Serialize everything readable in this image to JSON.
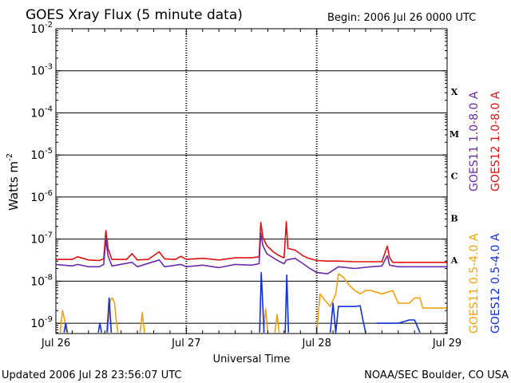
{
  "chart_data": {
    "type": "line",
    "title": "GOES Xray Flux (5 minute data)",
    "begin_label": "Begin:  2006 Jul 26 0000 UTC",
    "xlabel": "Universal Time",
    "ylabel_main": "Watts m",
    "ylabel_sup": "-2",
    "y_scale": "log",
    "ylim": [
      5.7e-10,
      0.01
    ],
    "y_ticks": [
      {
        "base": "10",
        "exp": "-2",
        "value": 0.01
      },
      {
        "base": "10",
        "exp": "-3",
        "value": 0.001
      },
      {
        "base": "10",
        "exp": "-4",
        "value": 0.0001
      },
      {
        "base": "10",
        "exp": "-5",
        "value": 1e-05
      },
      {
        "base": "10",
        "exp": "-6",
        "value": 1e-06
      },
      {
        "base": "10",
        "exp": "-7",
        "value": 1e-07
      },
      {
        "base": "10",
        "exp": "-8",
        "value": 1e-08
      },
      {
        "base": "10",
        "exp": "-9",
        "value": 1e-09
      }
    ],
    "x_range_hours": [
      0,
      72
    ],
    "x_ticks": [
      {
        "label": "Jul 26",
        "hour": 0
      },
      {
        "label": "Jul 27",
        "hour": 24
      },
      {
        "label": "Jul 28",
        "hour": 48
      },
      {
        "label": "Jul 29",
        "hour": 72
      }
    ],
    "flare_classes": [
      {
        "label": "X",
        "value": 0.0003162
      },
      {
        "label": "M",
        "value": 3.162e-05
      },
      {
        "label": "C",
        "value": 3.162e-06
      },
      {
        "label": "B",
        "value": 3.162e-07
      },
      {
        "label": "A",
        "value": 3.162e-08
      }
    ],
    "right_legend": {
      "upper": [
        {
          "label": "GOES11 1.0-8.0 A",
          "color": "#6a2ca8"
        },
        {
          "label": "GOES12 1.0-8.0 A",
          "color": "#e01010"
        }
      ],
      "lower": [
        {
          "label": "GOES11 0.5-4.0 A",
          "color": "#f0a010"
        },
        {
          "label": "GOES12 0.5-4.0 A",
          "color": "#1030e0"
        }
      ]
    },
    "series": [
      {
        "key": "g12long",
        "color": "#e01010",
        "points": [
          [
            0,
            3.3e-08
          ],
          [
            3,
            3.3e-08
          ],
          [
            4,
            3.8e-08
          ],
          [
            6,
            3.2e-08
          ],
          [
            8,
            3.1e-08
          ],
          [
            8.8,
            3.4e-08
          ],
          [
            9.2,
            1.6e-07
          ],
          [
            9.6,
            6e-08
          ],
          [
            10.3,
            3.3e-08
          ],
          [
            13,
            3.3e-08
          ],
          [
            14,
            4.5e-08
          ],
          [
            15,
            3.2e-08
          ],
          [
            17,
            3.3e-08
          ],
          [
            19,
            5e-08
          ],
          [
            20,
            3.4e-08
          ],
          [
            22,
            3.3e-08
          ],
          [
            23,
            3.9e-08
          ],
          [
            24,
            3.3e-08
          ],
          [
            27,
            3.5e-08
          ],
          [
            30,
            3.2e-08
          ],
          [
            33,
            3.6e-08
          ],
          [
            36,
            3.6e-08
          ],
          [
            37.4,
            3.8e-08
          ],
          [
            37.7,
            2.5e-07
          ],
          [
            38.1,
            1.1e-07
          ],
          [
            38.8,
            7e-08
          ],
          [
            40,
            5e-08
          ],
          [
            41,
            4.1e-08
          ],
          [
            42,
            3.6e-08
          ],
          [
            42.4,
            2.6e-07
          ],
          [
            42.7,
            6e-08
          ],
          [
            44,
            5.5e-08
          ],
          [
            45.5,
            4e-08
          ],
          [
            46.5,
            3.5e-08
          ],
          [
            48,
            3.1e-08
          ],
          [
            50,
            3e-08
          ],
          [
            52,
            3e-08
          ],
          [
            55,
            2.9e-08
          ],
          [
            58,
            2.9e-08
          ],
          [
            60,
            2.9e-08
          ],
          [
            61,
            6.8e-08
          ],
          [
            61.4,
            3.6e-08
          ],
          [
            62,
            2.8e-08
          ],
          [
            66,
            2.8e-08
          ],
          [
            69,
            2.8e-08
          ],
          [
            72,
            2.8e-08
          ]
        ]
      },
      {
        "key": "g11long",
        "color": "#6a2ca8",
        "points": [
          [
            0,
            2.5e-08
          ],
          [
            3,
            2.3e-08
          ],
          [
            4,
            2.5e-08
          ],
          [
            6,
            2.2e-08
          ],
          [
            8,
            2.2e-08
          ],
          [
            8.8,
            2.5e-08
          ],
          [
            9.2,
            1e-07
          ],
          [
            9.6,
            4e-08
          ],
          [
            10.3,
            2.3e-08
          ],
          [
            14,
            2.8e-08
          ],
          [
            15,
            2.2e-08
          ],
          [
            19,
            3.2e-08
          ],
          [
            20,
            2.2e-08
          ],
          [
            23,
            2.5e-08
          ],
          [
            24,
            2.2e-08
          ],
          [
            27,
            2.4e-08
          ],
          [
            30,
            2.1e-08
          ],
          [
            33,
            2.5e-08
          ],
          [
            36,
            2.4e-08
          ],
          [
            37.4,
            2.6e-08
          ],
          [
            37.7,
            1.4e-07
          ],
          [
            38.1,
            7e-08
          ],
          [
            38.8,
            4.5e-08
          ],
          [
            40,
            3.6e-08
          ],
          [
            41,
            3e-08
          ],
          [
            42,
            2.6e-08
          ],
          [
            42.4,
            3.2e-08
          ],
          [
            44,
            3.5e-08
          ],
          [
            45.5,
            2.6e-08
          ],
          [
            46.5,
            2.1e-08
          ],
          [
            48,
            1.6e-08
          ],
          [
            50,
            1.5e-08
          ],
          [
            52,
            2.2e-08
          ],
          [
            55,
            2e-08
          ],
          [
            58,
            2.2e-08
          ],
          [
            60,
            2.3e-08
          ],
          [
            61,
            4e-08
          ],
          [
            61.4,
            2.4e-08
          ],
          [
            63,
            2.2e-08
          ],
          [
            66,
            2.2e-08
          ],
          [
            69,
            2.2e-08
          ],
          [
            72,
            2.2e-08
          ]
        ]
      },
      {
        "key": "g11short",
        "color": "#f0a010",
        "points": [
          [
            0.8,
            6e-10
          ],
          [
            1.2,
            2e-09
          ],
          [
            1.6,
            1.2e-09
          ],
          [
            2,
            6e-10
          ],
          [
            null,
            null
          ],
          [
            9.5,
            6e-10
          ],
          [
            10,
            3.6e-09
          ],
          [
            10.4,
            4e-09
          ],
          [
            10.8,
            3e-09
          ],
          [
            11.1,
            1.2e-09
          ],
          [
            11.4,
            6e-10
          ],
          [
            null,
            null
          ],
          [
            15.5,
            6e-10
          ],
          [
            15.9,
            1.8e-09
          ],
          [
            16.3,
            6e-10
          ],
          [
            null,
            null
          ],
          [
            38.2,
            6e-10
          ],
          [
            38.6,
            2.2e-09
          ],
          [
            39,
            6e-10
          ],
          [
            null,
            null
          ],
          [
            40.3,
            6e-10
          ],
          [
            40.7,
            1.6e-09
          ],
          [
            41.1,
            6e-10
          ],
          [
            null,
            null
          ],
          [
            48,
            6e-10
          ],
          [
            48.6,
            5e-09
          ],
          [
            49.5,
            3.5e-09
          ],
          [
            50.5,
            2.5e-09
          ],
          [
            51.5,
            5e-09
          ],
          [
            52,
            1.5e-08
          ],
          [
            53,
            1.2e-08
          ],
          [
            54,
            8e-09
          ],
          [
            55,
            6e-09
          ],
          [
            56,
            5e-09
          ],
          [
            57,
            6e-09
          ],
          [
            58,
            6e-09
          ],
          [
            60,
            5e-09
          ],
          [
            62,
            6e-09
          ],
          [
            63,
            3e-09
          ],
          [
            65,
            3e-09
          ],
          [
            66,
            4e-09
          ],
          [
            67,
            4e-09
          ],
          [
            67.5,
            2.3e-09
          ],
          [
            72,
            2.3e-09
          ]
        ]
      },
      {
        "key": "g12short",
        "color": "#1030e0",
        "points": [
          [
            1.5,
            6e-10
          ],
          [
            1.8,
            1e-09
          ],
          [
            2.1,
            6e-10
          ],
          [
            null,
            null
          ],
          [
            7.8,
            6e-10
          ],
          [
            8.1,
            1e-09
          ],
          [
            8.4,
            6e-10
          ],
          [
            null,
            null
          ],
          [
            9.4,
            6e-10
          ],
          [
            9.8,
            4e-09
          ],
          [
            10.2,
            6e-10
          ],
          [
            null,
            null
          ],
          [
            37.5,
            6e-10
          ],
          [
            37.8,
            1.6e-08
          ],
          [
            38.3,
            6e-10
          ],
          [
            null,
            null
          ],
          [
            42.2,
            6e-10
          ],
          [
            42.5,
            1.4e-08
          ],
          [
            42.8,
            6e-10
          ],
          [
            null,
            null
          ],
          [
            50.5,
            6e-10
          ],
          [
            51,
            3e-09
          ],
          [
            51.5,
            6e-10
          ],
          [
            52,
            2.5e-09
          ],
          [
            53,
            2.5e-09
          ],
          [
            54,
            2.5e-09
          ],
          [
            55,
            2.5e-09
          ],
          [
            56,
            2.6e-09
          ],
          [
            56.5,
            1.2e-09
          ],
          [
            57,
            6e-10
          ],
          [
            null,
            null
          ],
          [
            59,
            1e-09
          ],
          [
            61,
            1e-09
          ],
          [
            63,
            1e-09
          ],
          [
            65,
            1.2e-09
          ],
          [
            66,
            1.2e-09
          ],
          [
            67,
            6e-10
          ]
        ]
      }
    ]
  },
  "footer": {
    "updated": "Updated 2006 Jul 28 23:56:07 UTC",
    "credit": "NOAA/SEC Boulder, CO USA"
  }
}
